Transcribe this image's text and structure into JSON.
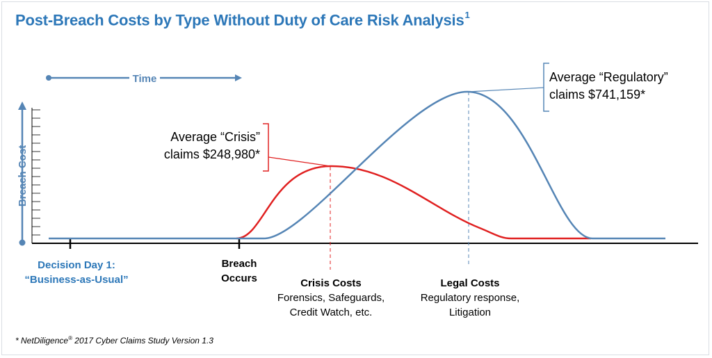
{
  "title": "Post-Breach Costs by Type Without Duty of Care Risk Analysis",
  "title_superscript": "1",
  "colors": {
    "blue": "#5585b5",
    "red": "#e02020",
    "title_blue": "#2c77b8"
  },
  "time_label": "Time",
  "y_axis_label": "Breach Cost",
  "annotations": {
    "crisis": {
      "line1": "Average “Crisis”",
      "line2": "claims $248,980*"
    },
    "regulatory": {
      "line1": "Average “Regulatory”",
      "line2": "claims $741,159*"
    }
  },
  "milestones": {
    "decision_day": {
      "line1": "Decision Day 1:",
      "line2": "“Business-as-Usual”"
    },
    "breach": {
      "line1": "Breach",
      "line2": "Occurs"
    },
    "crisis_costs": {
      "title": "Crisis Costs",
      "line1": "Forensics, Safeguards,",
      "line2": "Credit Watch, etc."
    },
    "legal_costs": {
      "title": "Legal Costs",
      "line1": "Regulatory response,",
      "line2": "Litigation"
    }
  },
  "footnote": {
    "prefix": "* ",
    "brand": "NetDiligence",
    "mark": "®",
    "rest": " 2017 Cyber Claims Study Version 1.3"
  },
  "chart_data": {
    "type": "line",
    "title": "Post-Breach Costs by Type Without Duty of Care Risk Analysis",
    "xlabel": "Time",
    "ylabel": "Breach Cost",
    "series": [
      {
        "values": [
          248980
        ]
      },
      {
        "values": [
          741159
        ]
      }
    ]
  }
}
